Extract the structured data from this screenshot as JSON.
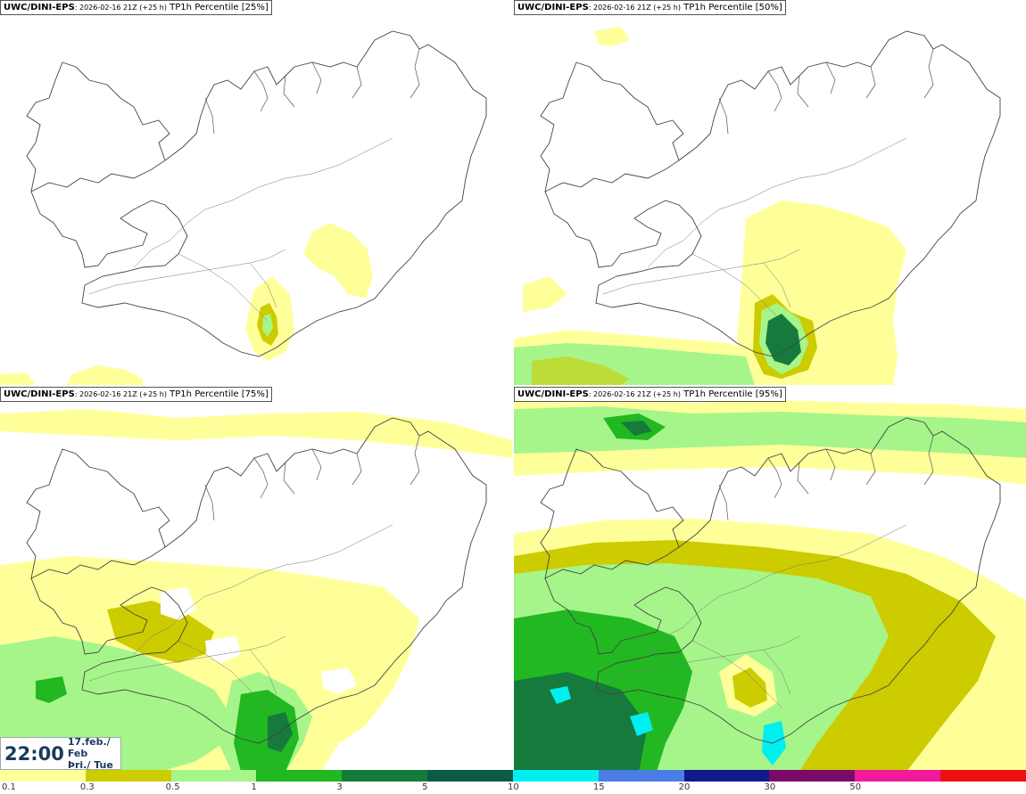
{
  "panels": [
    {
      "model": "UWC/DINI-EPS",
      "meta": ": 2026-02-16 21Z (+25 h)",
      "field": "TP1h Percentile [25%]"
    },
    {
      "model": "UWC/DINI-EPS",
      "meta": ": 2026-02-16 21Z (+25 h)",
      "field": "TP1h Percentile [50%]"
    },
    {
      "model": "UWC/DINI-EPS",
      "meta": ": 2026-02-16 21Z (+25 h)",
      "field": "TP1h Percentile [75%]"
    },
    {
      "model": "UWC/DINI-EPS",
      "meta": ": 2026-02-16 21Z (+25 h)",
      "field": "TP1h Percentile [95%]"
    }
  ],
  "timestamp": {
    "time": "22:00",
    "date": "17.feb./ Feb",
    "day": "Þri./ Tue"
  },
  "legend": {
    "ticks": [
      "0.1",
      "0.3",
      "0.5",
      "1",
      "3",
      "5",
      "10",
      "15",
      "20",
      "30",
      "50"
    ],
    "colors": [
      "#ffff9a",
      "#cccc00",
      "#a6f58a",
      "#22b822",
      "#167a3c",
      "#0e5a48",
      "#00f0f0",
      "#4a7ee6",
      "#101a8a",
      "#7a0a6a",
      "#f01a9a",
      "#ee1010"
    ]
  },
  "colors": {
    "precip_light": "#ffff9a",
    "precip_olive": "#cccc00",
    "precip_lightgreen": "#a6f58a",
    "precip_green": "#22b822",
    "precip_darkgreen": "#167a3c",
    "precip_cyan": "#00f0f0",
    "coastline": "#444444"
  }
}
